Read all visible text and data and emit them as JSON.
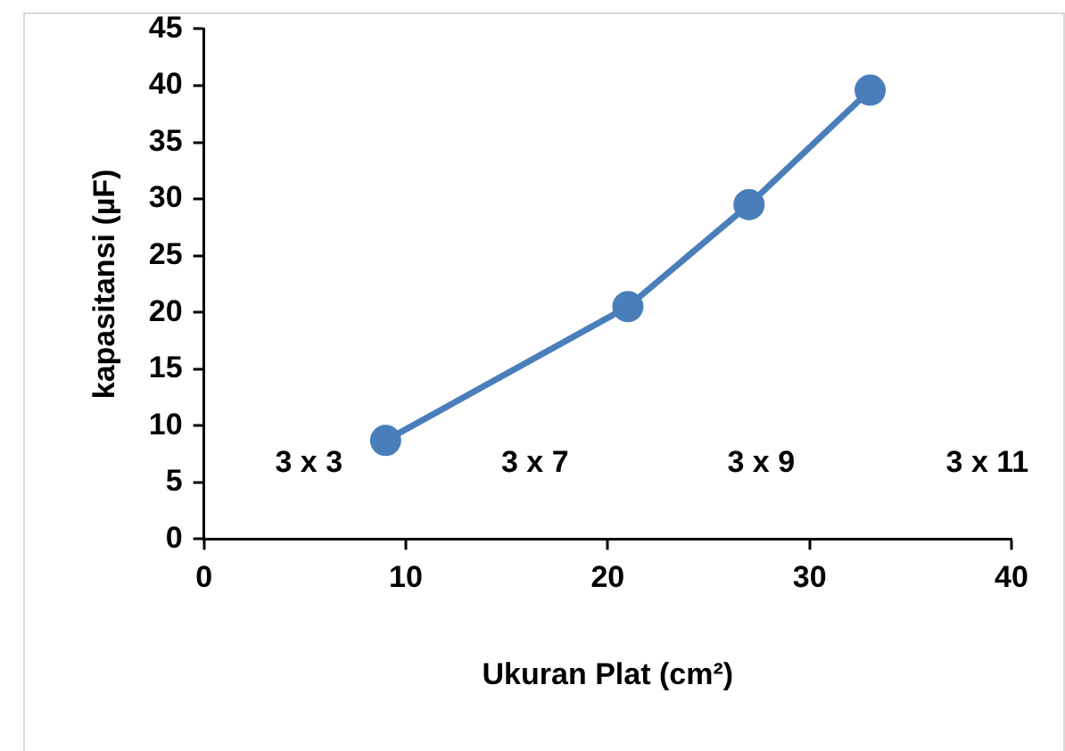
{
  "chart_data": {
    "type": "line",
    "xlabel": "Ukuran Plat (cm²)",
    "ylabel": "kapasitansi (µF)",
    "x": [
      9,
      21,
      27,
      33
    ],
    "series": [
      {
        "color": "#4a7ebb",
        "values": [
          8.7,
          20.5,
          29.5,
          39.6
        ]
      }
    ],
    "xlim": [
      0,
      40
    ],
    "xticks": [
      0,
      10,
      20,
      30,
      40
    ],
    "ylim": [
      0,
      45
    ],
    "yticks": [
      0,
      5,
      10,
      15,
      20,
      25,
      30,
      35,
      40,
      45
    ],
    "grid": false,
    "legend": false,
    "marker": "circle",
    "line_style": "solid",
    "annotations": [
      "3 x 3",
      "3 x 7",
      "3 x 9",
      "3 x 11"
    ]
  }
}
